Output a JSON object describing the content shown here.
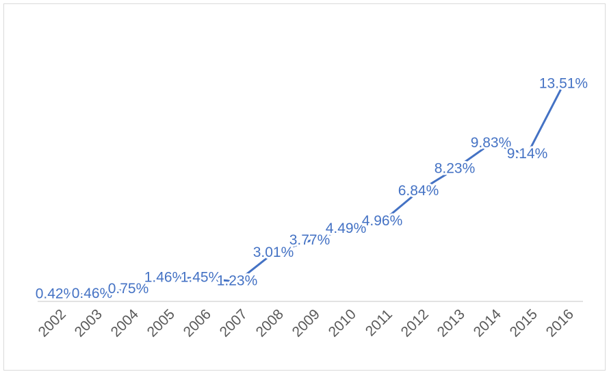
{
  "chart_data": {
    "type": "line",
    "categories": [
      "2002",
      "2003",
      "2004",
      "2005",
      "2006",
      "2007",
      "2008",
      "2009",
      "2010",
      "2011",
      "2012",
      "2013",
      "2014",
      "2015",
      "2016"
    ],
    "values": [
      0.42,
      0.46,
      0.75,
      1.46,
      1.45,
      1.23,
      3.01,
      3.77,
      4.49,
      4.96,
      6.84,
      8.23,
      9.83,
      9.14,
      13.51
    ],
    "value_labels": [
      "0.42%",
      "0.46%",
      "0.75%",
      "1.46%",
      "1.45%",
      "1.23%",
      "3.01%",
      "3.77%",
      "4.49%",
      "4.96%",
      "6.84%",
      "8.23%",
      "9.83%",
      "9.14%",
      "13.51%"
    ],
    "color": "#4472c4"
  }
}
